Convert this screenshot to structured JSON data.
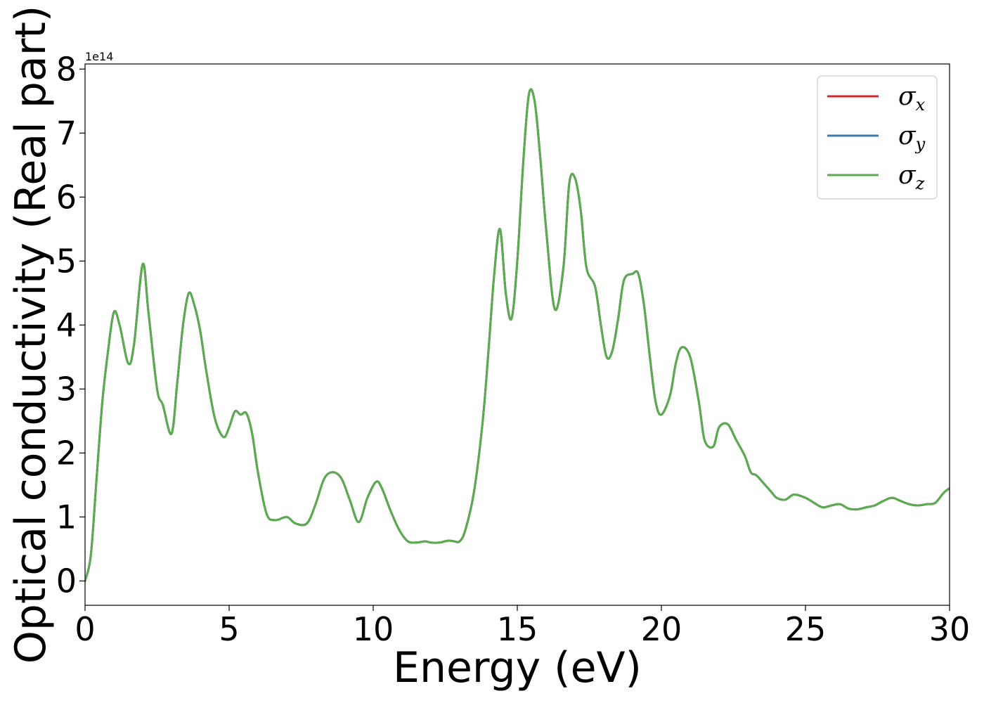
{
  "chart_data": {
    "type": "line",
    "title": "",
    "xlabel": "Energy (eV)",
    "ylabel": "Optical conductivity (Real part)",
    "y_offset_text": "1e14",
    "xlim": [
      0,
      30
    ],
    "ylim": [
      -0.38,
      8.08
    ],
    "y_scale_factor": 100000000000000.0,
    "xticks": [
      0,
      5,
      10,
      15,
      20,
      25,
      30
    ],
    "yticks": [
      0,
      1,
      2,
      3,
      4,
      5,
      6,
      7,
      8
    ],
    "grid": false,
    "legend_position": "top-right",
    "series": [
      {
        "name": "σ",
        "subscript": "x",
        "color": "#d62728",
        "x": [
          0,
          0.2,
          0.4,
          0.6,
          0.8,
          1.0,
          1.2,
          1.5,
          1.7,
          2.0,
          2.2,
          2.5,
          2.7,
          3.0,
          3.2,
          3.4,
          3.6,
          3.8,
          4.0,
          4.2,
          4.5,
          4.8,
          5.0,
          5.2,
          5.4,
          5.6,
          5.8,
          6.0,
          6.3,
          6.6,
          7.0,
          7.3,
          7.7,
          8.0,
          8.3,
          8.6,
          8.9,
          9.2,
          9.5,
          9.8,
          10.1,
          10.3,
          10.6,
          10.9,
          11.2,
          11.5,
          11.8,
          12.0,
          12.3,
          12.6,
          12.8,
          13.0,
          13.2,
          13.5,
          13.8,
          14.0,
          14.2,
          14.4,
          14.6,
          14.8,
          15.0,
          15.2,
          15.4,
          15.6,
          15.8,
          16.0,
          16.3,
          16.6,
          16.8,
          17.0,
          17.2,
          17.4,
          17.7,
          17.9,
          18.1,
          18.3,
          18.5,
          18.7,
          19.0,
          19.2,
          19.4,
          19.6,
          19.8,
          20.0,
          20.3,
          20.5,
          20.7,
          21.0,
          21.3,
          21.5,
          21.8,
          22.0,
          22.3,
          22.6,
          22.9,
          23.1,
          23.3,
          23.6,
          23.8,
          24.0,
          24.3,
          24.6,
          25.0,
          25.3,
          25.6,
          25.9,
          26.2,
          26.5,
          26.8,
          27.1,
          27.4,
          27.7,
          28.0,
          28.3,
          28.6,
          28.9,
          29.2,
          29.5,
          29.8,
          30.0
        ],
        "y": [
          0,
          0.4,
          1.6,
          2.8,
          3.6,
          4.2,
          4.0,
          3.4,
          3.7,
          4.95,
          4.2,
          3.0,
          2.75,
          2.3,
          3.1,
          4.0,
          4.5,
          4.3,
          3.9,
          3.3,
          2.55,
          2.25,
          2.4,
          2.65,
          2.6,
          2.62,
          2.3,
          1.7,
          1.05,
          0.95,
          1.0,
          0.9,
          0.9,
          1.2,
          1.6,
          1.7,
          1.6,
          1.25,
          0.92,
          1.3,
          1.55,
          1.45,
          1.1,
          0.8,
          0.62,
          0.6,
          0.62,
          0.6,
          0.6,
          0.63,
          0.62,
          0.62,
          0.8,
          1.4,
          2.5,
          3.6,
          4.8,
          5.5,
          4.5,
          4.1,
          5.0,
          6.5,
          7.6,
          7.5,
          6.6,
          5.5,
          4.25,
          4.9,
          6.2,
          6.3,
          5.8,
          4.9,
          4.6,
          4.0,
          3.5,
          3.6,
          4.1,
          4.7,
          4.8,
          4.8,
          4.3,
          3.5,
          2.8,
          2.6,
          2.9,
          3.4,
          3.65,
          3.5,
          2.8,
          2.2,
          2.1,
          2.4,
          2.45,
          2.2,
          1.95,
          1.7,
          1.65,
          1.5,
          1.4,
          1.3,
          1.27,
          1.35,
          1.3,
          1.22,
          1.15,
          1.18,
          1.2,
          1.13,
          1.12,
          1.15,
          1.18,
          1.25,
          1.3,
          1.25,
          1.2,
          1.18,
          1.2,
          1.22,
          1.38,
          1.45
        ]
      },
      {
        "name": "σ",
        "subscript": "y",
        "color": "#3a7bb0",
        "x": [
          0,
          0.2,
          0.4,
          0.6,
          0.8,
          1.0,
          1.2,
          1.5,
          1.7,
          2.0,
          2.2,
          2.5,
          2.7,
          3.0,
          3.2,
          3.4,
          3.6,
          3.8,
          4.0,
          4.2,
          4.5,
          4.8,
          5.0,
          5.2,
          5.4,
          5.6,
          5.8,
          6.0,
          6.3,
          6.6,
          7.0,
          7.3,
          7.7,
          8.0,
          8.3,
          8.6,
          8.9,
          9.2,
          9.5,
          9.8,
          10.1,
          10.3,
          10.6,
          10.9,
          11.2,
          11.5,
          11.8,
          12.0,
          12.3,
          12.6,
          12.8,
          13.0,
          13.2,
          13.5,
          13.8,
          14.0,
          14.2,
          14.4,
          14.6,
          14.8,
          15.0,
          15.2,
          15.4,
          15.6,
          15.8,
          16.0,
          16.3,
          16.6,
          16.8,
          17.0,
          17.2,
          17.4,
          17.7,
          17.9,
          18.1,
          18.3,
          18.5,
          18.7,
          19.0,
          19.2,
          19.4,
          19.6,
          19.8,
          20.0,
          20.3,
          20.5,
          20.7,
          21.0,
          21.3,
          21.5,
          21.8,
          22.0,
          22.3,
          22.6,
          22.9,
          23.1,
          23.3,
          23.6,
          23.8,
          24.0,
          24.3,
          24.6,
          25.0,
          25.3,
          25.6,
          25.9,
          26.2,
          26.5,
          26.8,
          27.1,
          27.4,
          27.7,
          28.0,
          28.3,
          28.6,
          28.9,
          29.2,
          29.5,
          29.8,
          30.0
        ],
        "y": [
          0,
          0.4,
          1.6,
          2.8,
          3.6,
          4.2,
          4.0,
          3.4,
          3.7,
          4.95,
          4.2,
          3.0,
          2.75,
          2.3,
          3.1,
          4.0,
          4.5,
          4.3,
          3.9,
          3.3,
          2.55,
          2.25,
          2.4,
          2.65,
          2.6,
          2.62,
          2.3,
          1.7,
          1.05,
          0.95,
          1.0,
          0.9,
          0.9,
          1.2,
          1.6,
          1.7,
          1.6,
          1.25,
          0.92,
          1.3,
          1.55,
          1.45,
          1.1,
          0.8,
          0.62,
          0.6,
          0.62,
          0.6,
          0.6,
          0.63,
          0.62,
          0.62,
          0.8,
          1.4,
          2.5,
          3.6,
          4.8,
          5.5,
          4.5,
          4.1,
          5.0,
          6.5,
          7.6,
          7.5,
          6.6,
          5.5,
          4.25,
          4.9,
          6.2,
          6.3,
          5.8,
          4.9,
          4.6,
          4.0,
          3.5,
          3.6,
          4.1,
          4.7,
          4.8,
          4.8,
          4.3,
          3.5,
          2.8,
          2.6,
          2.9,
          3.4,
          3.65,
          3.5,
          2.8,
          2.2,
          2.1,
          2.4,
          2.45,
          2.2,
          1.95,
          1.7,
          1.65,
          1.5,
          1.4,
          1.3,
          1.27,
          1.35,
          1.3,
          1.22,
          1.15,
          1.18,
          1.2,
          1.13,
          1.12,
          1.15,
          1.18,
          1.25,
          1.3,
          1.25,
          1.2,
          1.18,
          1.2,
          1.22,
          1.38,
          1.45
        ]
      },
      {
        "name": "σ",
        "subscript": "z",
        "color": "#5aac4e",
        "x": [
          0,
          0.2,
          0.4,
          0.6,
          0.8,
          1.0,
          1.2,
          1.5,
          1.7,
          2.0,
          2.2,
          2.5,
          2.7,
          3.0,
          3.2,
          3.4,
          3.6,
          3.8,
          4.0,
          4.2,
          4.5,
          4.8,
          5.0,
          5.2,
          5.4,
          5.6,
          5.8,
          6.0,
          6.3,
          6.6,
          7.0,
          7.3,
          7.7,
          8.0,
          8.3,
          8.6,
          8.9,
          9.2,
          9.5,
          9.8,
          10.1,
          10.3,
          10.6,
          10.9,
          11.2,
          11.5,
          11.8,
          12.0,
          12.3,
          12.6,
          12.8,
          13.0,
          13.2,
          13.5,
          13.8,
          14.0,
          14.2,
          14.4,
          14.6,
          14.8,
          15.0,
          15.2,
          15.4,
          15.6,
          15.8,
          16.0,
          16.3,
          16.6,
          16.8,
          17.0,
          17.2,
          17.4,
          17.7,
          17.9,
          18.1,
          18.3,
          18.5,
          18.7,
          19.0,
          19.2,
          19.4,
          19.6,
          19.8,
          20.0,
          20.3,
          20.5,
          20.7,
          21.0,
          21.3,
          21.5,
          21.8,
          22.0,
          22.3,
          22.6,
          22.9,
          23.1,
          23.3,
          23.6,
          23.8,
          24.0,
          24.3,
          24.6,
          25.0,
          25.3,
          25.6,
          25.9,
          26.2,
          26.5,
          26.8,
          27.1,
          27.4,
          27.7,
          28.0,
          28.3,
          28.6,
          28.9,
          29.2,
          29.5,
          29.8,
          30.0
        ],
        "y": [
          0,
          0.4,
          1.6,
          2.8,
          3.6,
          4.2,
          4.0,
          3.4,
          3.7,
          4.95,
          4.2,
          3.0,
          2.75,
          2.3,
          3.1,
          4.0,
          4.5,
          4.3,
          3.9,
          3.3,
          2.55,
          2.25,
          2.4,
          2.65,
          2.6,
          2.62,
          2.3,
          1.7,
          1.05,
          0.95,
          1.0,
          0.9,
          0.9,
          1.2,
          1.6,
          1.7,
          1.6,
          1.25,
          0.92,
          1.3,
          1.55,
          1.45,
          1.1,
          0.8,
          0.62,
          0.6,
          0.62,
          0.6,
          0.6,
          0.63,
          0.62,
          0.62,
          0.8,
          1.4,
          2.5,
          3.6,
          4.8,
          5.5,
          4.5,
          4.1,
          5.0,
          6.5,
          7.6,
          7.5,
          6.6,
          5.5,
          4.25,
          4.9,
          6.2,
          6.3,
          5.8,
          4.9,
          4.6,
          4.0,
          3.5,
          3.6,
          4.1,
          4.7,
          4.8,
          4.8,
          4.3,
          3.5,
          2.8,
          2.6,
          2.9,
          3.4,
          3.65,
          3.5,
          2.8,
          2.2,
          2.1,
          2.4,
          2.45,
          2.2,
          1.95,
          1.7,
          1.65,
          1.5,
          1.4,
          1.3,
          1.27,
          1.35,
          1.3,
          1.22,
          1.15,
          1.18,
          1.2,
          1.13,
          1.12,
          1.15,
          1.18,
          1.25,
          1.3,
          1.25,
          1.2,
          1.18,
          1.2,
          1.22,
          1.38,
          1.45
        ]
      }
    ]
  }
}
